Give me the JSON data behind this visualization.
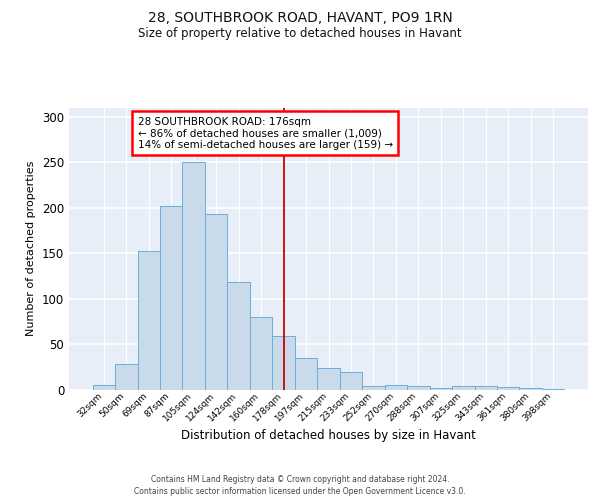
{
  "title_line1": "28, SOUTHBROOK ROAD, HAVANT, PO9 1RN",
  "title_line2": "Size of property relative to detached houses in Havant",
  "xlabel": "Distribution of detached houses by size in Havant",
  "ylabel": "Number of detached properties",
  "bar_labels": [
    "32sqm",
    "50sqm",
    "69sqm",
    "87sqm",
    "105sqm",
    "124sqm",
    "142sqm",
    "160sqm",
    "178sqm",
    "197sqm",
    "215sqm",
    "233sqm",
    "252sqm",
    "270sqm",
    "288sqm",
    "307sqm",
    "325sqm",
    "343sqm",
    "361sqm",
    "380sqm",
    "398sqm"
  ],
  "bar_values": [
    6,
    28,
    153,
    202,
    250,
    193,
    118,
    80,
    59,
    35,
    24,
    20,
    4,
    5,
    4,
    2,
    4,
    4,
    3,
    2,
    1
  ],
  "bar_color": "#c9daea",
  "bar_edgecolor": "#6aaed6",
  "ylim": [
    0,
    310
  ],
  "yticks": [
    0,
    50,
    100,
    150,
    200,
    250,
    300
  ],
  "red_line_x": 8.0,
  "annotation_text_line1": "28 SOUTHBROOK ROAD: 176sqm",
  "annotation_text_line2": "← 86% of detached houses are smaller (1,009)",
  "annotation_text_line3": "14% of semi-detached houses are larger (159) →",
  "background_color": "#e8eef8",
  "footer_line1": "Contains HM Land Registry data © Crown copyright and database right 2024.",
  "footer_line2": "Contains public sector information licensed under the Open Government Licence v3.0."
}
